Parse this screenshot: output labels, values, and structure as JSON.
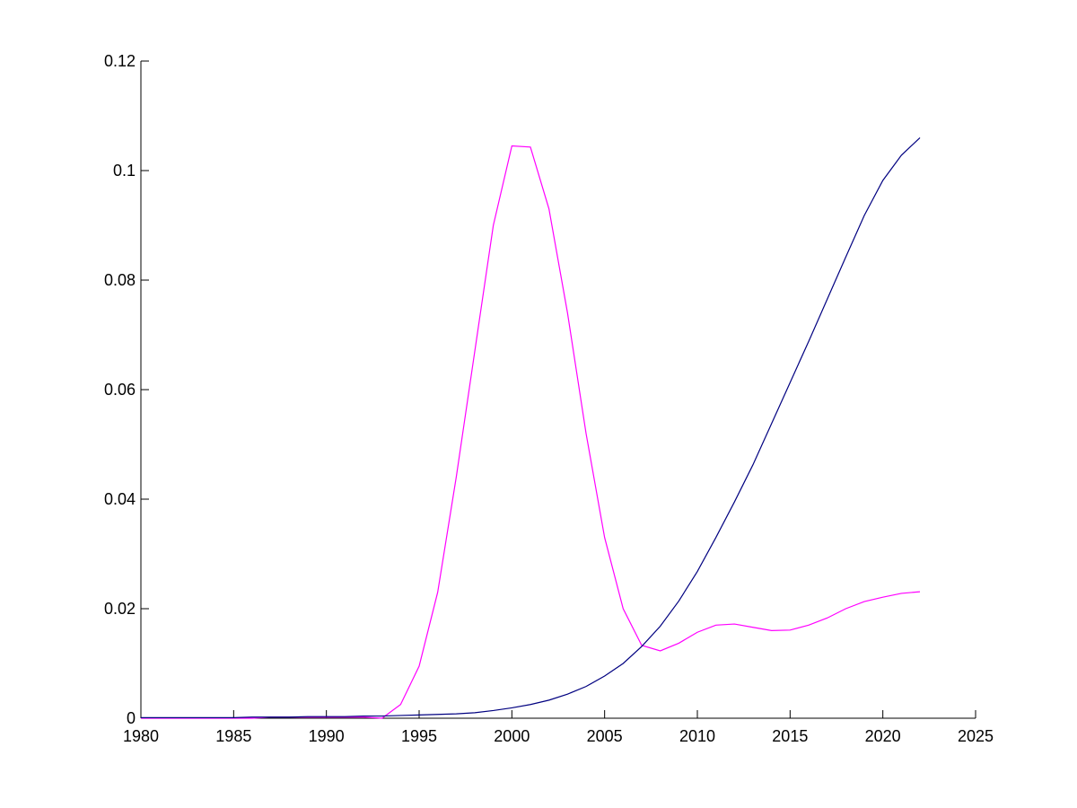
{
  "chart_data": {
    "type": "line",
    "x": [
      1980,
      1981,
      1982,
      1983,
      1984,
      1985,
      1986,
      1987,
      1988,
      1989,
      1990,
      1991,
      1992,
      1993,
      1994,
      1995,
      1996,
      1997,
      1998,
      1999,
      2000,
      2001,
      2002,
      2003,
      2004,
      2005,
      2006,
      2007,
      2008,
      2009,
      2010,
      2011,
      2012,
      2013,
      2014,
      2015,
      2016,
      2017,
      2018,
      2019,
      2020,
      2021,
      2022
    ],
    "series": [
      {
        "color": "#ff00ff",
        "values": [
          0,
          0,
          0,
          0,
          0,
          0,
          0,
          0.0002,
          0.0002,
          0.0002,
          0.0002,
          0.0002,
          0.0002,
          0,
          0.0025,
          0.0095,
          0.023,
          0.044,
          0.067,
          0.09,
          0.1045,
          0.1043,
          0.093,
          0.074,
          0.052,
          0.033,
          0.02,
          0.0133,
          0.0123,
          0.0137,
          0.0157,
          0.017,
          0.0172,
          0.0166,
          0.016,
          0.0161,
          0.017,
          0.0183,
          0.02,
          0.0213,
          0.0221,
          0.0228,
          0.0231
        ]
      },
      {
        "color": "#000080",
        "values": [
          0.0001,
          0.0001,
          0.0001,
          0.0001,
          0.0001,
          0.0001,
          0.0002,
          0.0002,
          0.0002,
          0.0003,
          0.0003,
          0.0003,
          0.0004,
          0.0004,
          0.0005,
          0.0006,
          0.0007,
          0.0008,
          0.001,
          0.0014,
          0.0019,
          0.0025,
          0.0033,
          0.0044,
          0.0058,
          0.0077,
          0.01,
          0.0131,
          0.0168,
          0.0214,
          0.0268,
          0.033,
          0.0395,
          0.0463,
          0.0538,
          0.0613,
          0.0688,
          0.0765,
          0.0842,
          0.0918,
          0.0982,
          0.1028,
          0.106
        ]
      }
    ],
    "xlim": [
      1980,
      2025
    ],
    "xticks": [
      1980,
      1985,
      1990,
      1995,
      2000,
      2005,
      2010,
      2015,
      2020,
      2025
    ],
    "ylim": [
      0,
      0.12
    ],
    "yticks": [
      0,
      0.02,
      0.04,
      0.06,
      0.08,
      0.1,
      0.12
    ]
  }
}
